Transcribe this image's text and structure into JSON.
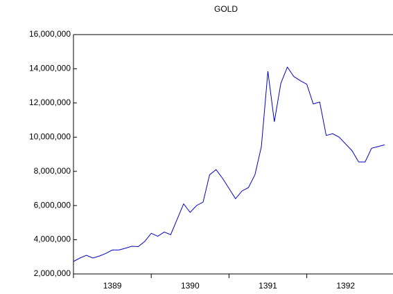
{
  "chart_data": {
    "type": "line",
    "title": "GOLD",
    "categories": [
      null,
      null,
      null,
      null,
      null,
      null,
      "1389",
      null,
      null,
      null,
      null,
      null,
      null,
      null,
      null,
      null,
      null,
      null,
      "1390",
      null,
      null,
      null,
      null,
      null,
      null,
      null,
      null,
      null,
      null,
      null,
      "1391",
      null,
      null,
      null,
      null,
      null,
      null,
      null,
      null,
      null,
      null,
      null,
      "1392",
      null,
      null,
      null,
      null,
      null,
      null
    ],
    "series": [
      {
        "name": "GOLD",
        "color": "#0000cc",
        "values": [
          2730000,
          2930000,
          3090000,
          2930000,
          3050000,
          3200000,
          3400000,
          3400000,
          3500000,
          3620000,
          3600000,
          3900000,
          4380000,
          4200000,
          4450000,
          4300000,
          5200000,
          6100000,
          5600000,
          6000000,
          6200000,
          7800000,
          8100000,
          7600000,
          7000000,
          6400000,
          6850000,
          7050000,
          7800000,
          9450000,
          13850000,
          10900000,
          13150000,
          14100000,
          13550000,
          13300000,
          13100000,
          11950000,
          12050000,
          10100000,
          10200000,
          10000000,
          9600000,
          9200000,
          8550000,
          8550000,
          9350000,
          9450000,
          9550000
        ]
      }
    ],
    "ylim": [
      2000000,
      16000000
    ],
    "yticks": [
      {
        "value": 2000000,
        "label": "2,000,000"
      },
      {
        "value": 4000000,
        "label": "4,000,000"
      },
      {
        "value": 6000000,
        "label": "6,000,000"
      },
      {
        "value": 8000000,
        "label": "8,000,000"
      },
      {
        "value": 10000000,
        "label": "10,000,000"
      },
      {
        "value": 12000000,
        "label": "12,000,000"
      },
      {
        "value": 14000000,
        "label": "14,000,000"
      },
      {
        "value": 16000000,
        "label": "16,000,000"
      }
    ],
    "grid": false
  }
}
